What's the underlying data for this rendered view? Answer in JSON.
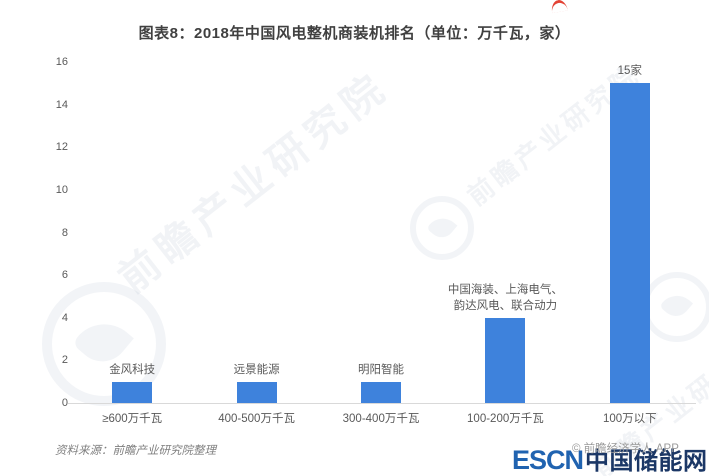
{
  "title": "图表8：2018年中国风电整机商装机排名（单位：万千瓦，家）",
  "chart_data": {
    "type": "bar",
    "title": "图表8：2018年中国风电整机商装机排名（单位：万千瓦，家）",
    "categories": [
      "≥600万千瓦",
      "400-500万千瓦",
      "300-400万千瓦",
      "100-200万千瓦",
      "100万以下"
    ],
    "values": [
      1,
      1,
      1,
      4,
      15
    ],
    "bar_labels": [
      [
        "金风科技"
      ],
      [
        "远景能源"
      ],
      [
        "明阳智能"
      ],
      [
        "中国海装、上海电气、",
        "韵达风电、联合动力"
      ],
      [
        "15家"
      ]
    ],
    "yticks": [
      0,
      2,
      4,
      6,
      8,
      10,
      12,
      14,
      16
    ],
    "ylim": [
      0,
      16
    ],
    "xlabel": "",
    "ylabel": "",
    "grid": false,
    "legend": "none",
    "bar_color": "#3E82DC"
  },
  "footer": {
    "source": "资料来源：前瞻产业研究院整理",
    "watermark_credit": "© 前瞻经济学人 APP"
  },
  "logo": {
    "escn": "ESCN",
    "cn_name": "中国储能网"
  },
  "watermark": {
    "text": "前瞻产业研究院"
  },
  "colors": {
    "bar": "#3E82DC",
    "title_text": "#404040",
    "axis_text": "#595959",
    "axis_line": "#D9D9D9",
    "escn_blue": "#2063B0",
    "escn_red": "#E34234",
    "escn_navy": "#1B3766"
  }
}
